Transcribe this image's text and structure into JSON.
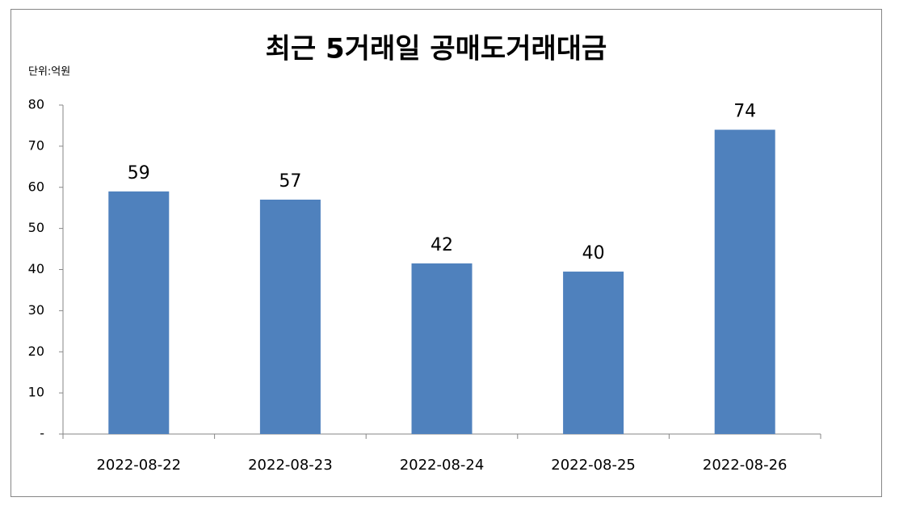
{
  "chart_data": {
    "type": "bar",
    "title": "최근 5거래일 공매도거래대금",
    "unit_label": "단위:억원",
    "categories": [
      "2022-08-22",
      "2022-08-23",
      "2022-08-24",
      "2022-08-25",
      "2022-08-26"
    ],
    "values": [
      59,
      57,
      41.5,
      39.5,
      74
    ],
    "value_labels": [
      "59",
      "57",
      "42",
      "40",
      "74"
    ],
    "color": "#4f81bd",
    "ylim": [
      0,
      80
    ],
    "yticks": [
      {
        "value": 0,
        "label": "-"
      },
      10,
      20,
      30,
      40,
      50,
      60,
      70,
      80
    ],
    "grid": false
  }
}
